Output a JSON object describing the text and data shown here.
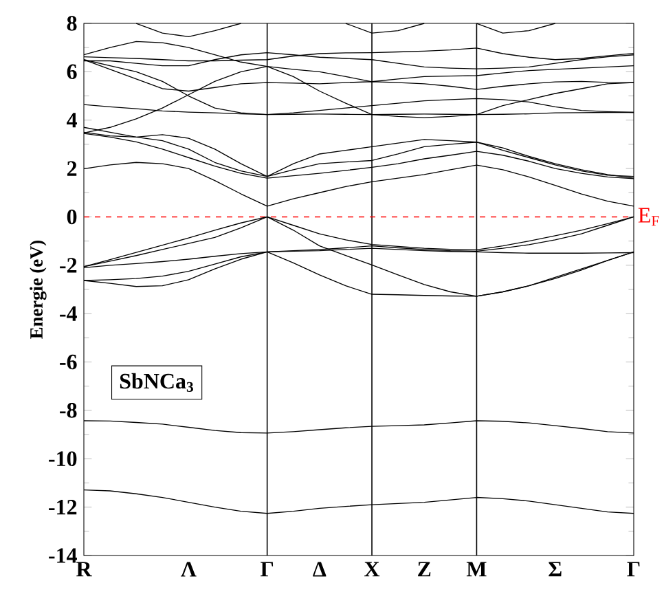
{
  "chart_data": {
    "type": "line",
    "ylabel": "Energie (eV)",
    "categories": [
      "R",
      null,
      null,
      null,
      "Λ",
      null,
      null,
      "Γ",
      null,
      "Δ",
      null,
      "X",
      null,
      "Z",
      null,
      "M",
      null,
      null,
      "Σ",
      null,
      null,
      "Γ"
    ],
    "ylim": [
      -14,
      8
    ],
    "yticks": [
      -14,
      -12,
      -10,
      -8,
      -6,
      -4,
      -2,
      0,
      2,
      4,
      6,
      8
    ],
    "marker": "none",
    "legend": false,
    "grid": false,
    "series": [
      {
        "color": "#000000",
        "values": [
          -11.29,
          -11.33,
          -11.45,
          -11.6,
          -11.8,
          -12.0,
          -12.17,
          -12.26,
          -12.17,
          -12.05,
          -11.97,
          -11.9,
          -11.85,
          -11.8,
          -11.7,
          -11.6,
          -11.65,
          -11.75,
          -11.9,
          -12.05,
          -12.2,
          -12.26
        ]
      },
      {
        "color": "#000000",
        "values": [
          -8.43,
          -8.44,
          -8.5,
          -8.57,
          -8.7,
          -8.83,
          -8.92,
          -8.94,
          -8.88,
          -8.8,
          -8.72,
          -8.66,
          -8.63,
          -8.6,
          -8.52,
          -8.43,
          -8.45,
          -8.52,
          -8.63,
          -8.75,
          -8.88,
          -8.94
        ]
      },
      {
        "color": "#000000",
        "values": [
          -2.63,
          -2.75,
          -2.88,
          -2.85,
          -2.6,
          -2.15,
          -1.75,
          -1.45,
          -1.9,
          -2.4,
          -2.85,
          -3.2,
          -3.22,
          -3.25,
          -3.27,
          -3.28,
          -3.1,
          -2.85,
          -2.55,
          -2.2,
          -1.8,
          -1.45
        ]
      },
      {
        "color": "#000000",
        "values": [
          -2.63,
          -2.6,
          -2.55,
          -2.45,
          -2.25,
          -1.95,
          -1.65,
          -1.45,
          -1.4,
          -1.35,
          -1.28,
          -1.2,
          -1.28,
          -1.35,
          -1.4,
          -1.42,
          -1.3,
          -1.15,
          -0.95,
          -0.7,
          -0.35,
          0
        ]
      },
      {
        "color": "#000000",
        "values": [
          -2.1,
          -2.0,
          -1.93,
          -1.85,
          -1.75,
          -1.63,
          -1.52,
          -1.45,
          -1.42,
          -1.4,
          -1.35,
          -1.3,
          -1.35,
          -1.4,
          -1.43,
          -1.45,
          -1.48,
          -1.5,
          -1.5,
          -1.5,
          -1.49,
          -1.48
        ]
      },
      {
        "color": "#000000",
        "values": [
          -2.06,
          -1.83,
          -1.6,
          -1.35,
          -1.1,
          -0.85,
          -0.45,
          0,
          -0.55,
          -1.2,
          -1.6,
          -1.99,
          -2.4,
          -2.8,
          -3.1,
          -3.28,
          -3.1,
          -2.85,
          -2.5,
          -2.15,
          -1.8,
          -1.45
        ]
      },
      {
        "color": "#000000",
        "values": [
          -2.06,
          -1.77,
          -1.47,
          -1.17,
          -0.87,
          -0.55,
          -0.25,
          0,
          -0.35,
          -0.7,
          -0.95,
          -1.14,
          -1.22,
          -1.3,
          -1.34,
          -1.36,
          -1.2,
          -1.0,
          -0.78,
          -0.55,
          -0.28,
          0
        ]
      },
      {
        "color": "#000000",
        "values": [
          1.99,
          2.15,
          2.25,
          2.2,
          2.0,
          1.5,
          0.95,
          0.44,
          0.75,
          1.0,
          1.25,
          1.45,
          1.6,
          1.75,
          1.95,
          2.14,
          1.95,
          1.65,
          1.3,
          0.95,
          0.65,
          0.44
        ]
      },
      {
        "color": "#000000",
        "values": [
          3.45,
          3.3,
          3.1,
          2.8,
          2.45,
          2.1,
          1.8,
          1.6,
          1.7,
          1.8,
          1.92,
          2.05,
          2.2,
          2.4,
          2.55,
          2.71,
          2.55,
          2.3,
          2.0,
          1.8,
          1.65,
          1.58
        ]
      },
      {
        "color": "#000000",
        "values": [
          3.7,
          3.5,
          3.3,
          3.15,
          2.8,
          2.25,
          1.9,
          1.67,
          1.95,
          2.2,
          2.27,
          2.33,
          2.6,
          2.9,
          3.0,
          3.09,
          2.85,
          2.5,
          2.2,
          1.95,
          1.75,
          1.6
        ]
      },
      {
        "color": "#000000",
        "values": [
          3.5,
          3.35,
          3.3,
          3.4,
          3.25,
          2.8,
          2.2,
          1.67,
          2.2,
          2.6,
          2.75,
          2.9,
          3.05,
          3.2,
          3.15,
          3.09,
          2.75,
          2.45,
          2.15,
          1.9,
          1.72,
          1.67
        ]
      },
      {
        "color": "#000000",
        "values": [
          4.64,
          4.55,
          4.47,
          4.38,
          4.33,
          4.3,
          4.26,
          4.23,
          4.24,
          4.25,
          4.24,
          4.23,
          4.24,
          4.25,
          4.24,
          4.23,
          4.24,
          4.26,
          4.3,
          4.31,
          4.32,
          4.32
        ]
      },
      {
        "color": "#000000",
        "values": [
          3.47,
          3.7,
          4.05,
          4.5,
          5.05,
          5.6,
          6.0,
          6.22,
          5.8,
          5.2,
          4.7,
          4.23,
          4.15,
          4.1,
          4.15,
          4.23,
          4.6,
          4.85,
          5.1,
          5.3,
          5.5,
          5.55
        ]
      },
      {
        "color": "#000000",
        "values": [
          6.5,
          6.1,
          5.7,
          5.3,
          5.2,
          5.35,
          5.5,
          5.55,
          5.53,
          5.5,
          5.55,
          5.59,
          5.55,
          5.5,
          5.4,
          5.27,
          5.4,
          5.5,
          5.58,
          5.6,
          5.56,
          5.55
        ]
      },
      {
        "color": "#000000",
        "values": [
          6.5,
          6.25,
          6.0,
          5.6,
          5.0,
          4.5,
          4.3,
          4.23,
          4.3,
          4.4,
          4.5,
          4.6,
          4.7,
          4.8,
          4.85,
          4.89,
          4.85,
          4.75,
          4.55,
          4.4,
          4.35,
          4.32
        ]
      },
      {
        "color": "#000000",
        "values": [
          6.45,
          6.45,
          6.35,
          6.25,
          6.25,
          6.5,
          6.7,
          6.79,
          6.7,
          6.6,
          6.55,
          6.5,
          6.35,
          6.2,
          6.15,
          6.12,
          6.15,
          6.2,
          6.35,
          6.5,
          6.62,
          6.7
        ]
      },
      {
        "color": "#000000",
        "values": [
          6.7,
          7.0,
          7.25,
          7.2,
          7.0,
          6.7,
          6.4,
          6.22,
          6.1,
          6.0,
          5.8,
          5.59,
          5.7,
          5.8,
          5.82,
          5.84,
          5.95,
          6.05,
          6.1,
          6.15,
          6.2,
          6.25
        ]
      },
      {
        "color": "#000000",
        "values": [
          6.62,
          6.58,
          6.55,
          6.5,
          6.45,
          6.45,
          6.48,
          6.5,
          6.65,
          6.75,
          6.78,
          6.79,
          6.82,
          6.85,
          6.9,
          6.98,
          6.75,
          6.6,
          6.5,
          6.55,
          6.66,
          6.76
        ]
      },
      {
        "color": "#000000",
        "values": [
          null,
          null,
          8,
          7.6,
          7.45,
          7.7,
          8,
          null,
          null,
          null,
          null,
          null,
          null,
          null,
          null,
          null,
          null,
          null,
          null,
          null,
          null,
          null
        ]
      },
      {
        "color": "#000000",
        "values": [
          null,
          null,
          null,
          null,
          null,
          null,
          null,
          null,
          null,
          null,
          8,
          7.6,
          7.7,
          8,
          null,
          null,
          null,
          null,
          null,
          null,
          null,
          null
        ]
      },
      {
        "color": "#000000",
        "values": [
          null,
          null,
          null,
          null,
          null,
          null,
          null,
          null,
          null,
          null,
          null,
          null,
          null,
          null,
          null,
          8,
          7.6,
          7.7,
          8,
          null,
          null,
          null
        ]
      }
    ],
    "ref_lines": [
      {
        "axis": "x",
        "value": "Γ",
        "color": "#000000"
      },
      {
        "axis": "x",
        "value": "X",
        "color": "#000000"
      },
      {
        "axis": "x",
        "value": "M",
        "color": "#000000"
      },
      {
        "axis": "y",
        "value": 0,
        "label": "E$_{F}$",
        "color": "#ff0000",
        "line_style": "dashed"
      }
    ],
    "annotations": [
      "SbNCa$_{3}$"
    ]
  }
}
